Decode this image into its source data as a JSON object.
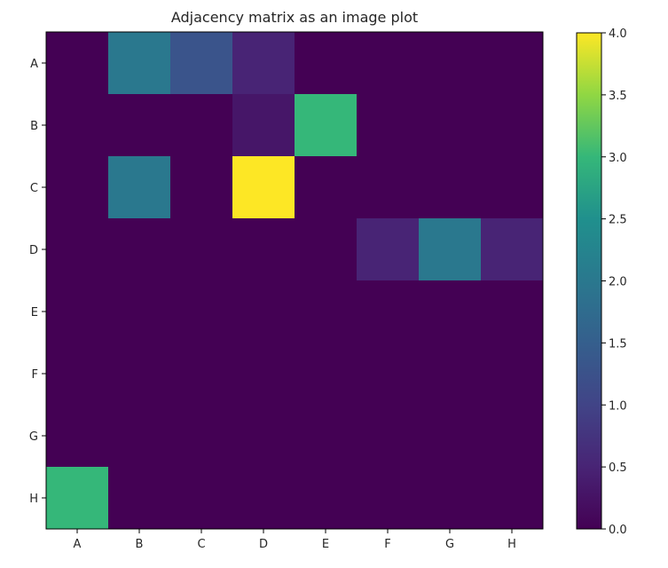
{
  "chart_data": {
    "type": "heatmap",
    "title": "Adjacency matrix as an image plot",
    "xlabel": "",
    "ylabel": "",
    "rows": [
      "A",
      "B",
      "C",
      "D",
      "E",
      "F",
      "G",
      "H"
    ],
    "columns": [
      "A",
      "B",
      "C",
      "D",
      "E",
      "F",
      "G",
      "H"
    ],
    "values": [
      [
        0,
        2,
        1.3,
        0.5,
        0,
        0,
        0,
        0
      ],
      [
        0,
        0,
        0,
        0.3,
        3,
        0,
        0,
        0
      ],
      [
        0,
        2,
        0,
        4,
        0,
        0,
        0,
        0
      ],
      [
        0,
        0,
        0,
        0,
        0,
        0.5,
        2,
        0.5
      ],
      [
        0,
        0,
        0,
        0,
        0,
        0,
        0,
        0
      ],
      [
        0,
        0,
        0,
        0,
        0,
        0,
        0,
        0
      ],
      [
        0,
        0,
        0,
        0,
        0,
        0,
        0,
        0
      ],
      [
        3,
        0,
        0,
        0,
        0,
        0,
        0,
        0
      ]
    ],
    "colormap": "viridis",
    "colorbar": {
      "min": 0,
      "max": 4,
      "ticks": [
        "0.0",
        "0.5",
        "1.0",
        "1.5",
        "2.0",
        "2.5",
        "3.0",
        "3.5",
        "4.0"
      ]
    },
    "grid": false
  }
}
